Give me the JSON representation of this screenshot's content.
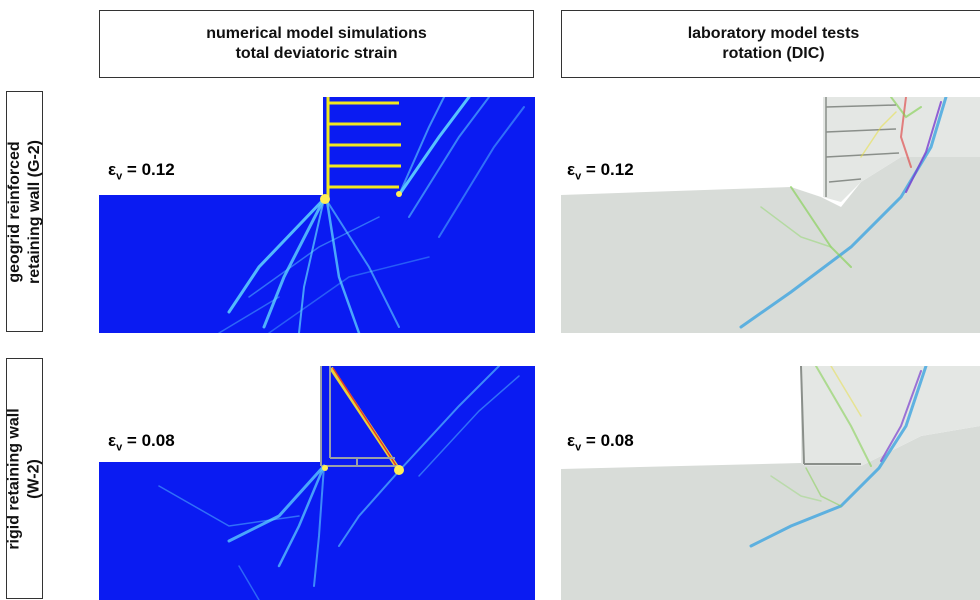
{
  "headers": {
    "numerical_line1": "numerical model simulations",
    "numerical_line2": "total deviatoric strain",
    "lab_line1": "laboratory model tests",
    "lab_line2": "rotation (DIC)"
  },
  "rows": {
    "geogrid_line1": "geogrid reinforced",
    "geogrid_line2": "retaining wall (G-2)",
    "rigid_line1": "rigid retaining wall",
    "rigid_line2": "(W-2)"
  },
  "labels": {
    "eps_symbol": "ε",
    "eps_sub": "v",
    "geogrid_value": " = 0.12",
    "rigid_value": " = 0.08"
  },
  "colors": {
    "sim_background": "#0a1bf2",
    "reinforcement": "#f2e81e",
    "shear_band": "#5fd6ff",
    "lab_soil": "#d8dcd8"
  }
}
